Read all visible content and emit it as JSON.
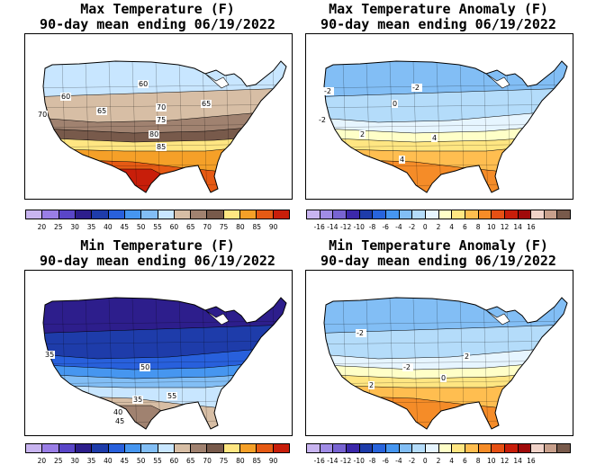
{
  "panels": [
    {
      "id": "max-temp",
      "title_line1": "Max Temperature (F)",
      "title_line2": "90-day mean ending 06/19/2022",
      "contour_labels": [
        "60",
        "60",
        "70",
        "65",
        "70",
        "75",
        "65",
        "80",
        "85"
      ],
      "scale": {
        "ticks": [
          "20",
          "25",
          "30",
          "35",
          "40",
          "45",
          "50",
          "55",
          "60",
          "65",
          "70",
          "75",
          "80",
          "85",
          "90"
        ],
        "colors": [
          "#c8b4f0",
          "#9a7ee6",
          "#5a46c8",
          "#2d1e8c",
          "#1e3caa",
          "#2860dc",
          "#4696f0",
          "#82bef5",
          "#c8e6ff",
          "#d7bea5",
          "#a08270",
          "#785a4b",
          "#ffe682",
          "#f5a028",
          "#e65a14",
          "#c81e0a"
        ]
      }
    },
    {
      "id": "max-anom",
      "title_line1": "Max Temperature Anomaly (F)",
      "title_line2": "90-day mean ending 06/19/2022",
      "contour_labels": [
        "-2",
        "-2",
        "-2",
        "2",
        "4",
        "4",
        "0"
      ],
      "scale": {
        "ticks": [
          "-16",
          "-14",
          "-12",
          "-10",
          "-8",
          "-6",
          "-4",
          "-2",
          "0",
          "2",
          "4",
          "6",
          "8",
          "10",
          "12",
          "14",
          "16"
        ],
        "colors": [
          "#c8b4f0",
          "#a08ce6",
          "#7864d2",
          "#3c28aa",
          "#1e3caa",
          "#2864dc",
          "#4696f0",
          "#82bef5",
          "#b4dcfa",
          "#e6f5ff",
          "#ffffc8",
          "#ffe682",
          "#ffbe50",
          "#f58c28",
          "#e65014",
          "#c81e0a",
          "#a00a0a",
          "#f0d2c8",
          "#c8a08c",
          "#785a4b"
        ]
      }
    },
    {
      "id": "min-temp",
      "title_line1": "Min Temperature (F)",
      "title_line2": "90-day mean ending 06/19/2022",
      "contour_labels": [
        "35",
        "50",
        "35",
        "40",
        "45",
        "55"
      ],
      "scale": {
        "ticks": [
          "20",
          "25",
          "30",
          "35",
          "40",
          "45",
          "50",
          "55",
          "60",
          "65",
          "70",
          "75",
          "80",
          "85",
          "90"
        ],
        "colors": [
          "#c8b4f0",
          "#9a7ee6",
          "#5a46c8",
          "#2d1e8c",
          "#1e3caa",
          "#2860dc",
          "#4696f0",
          "#82bef5",
          "#c8e6ff",
          "#d7bea5",
          "#a08270",
          "#785a4b",
          "#ffe682",
          "#f5a028",
          "#e65a14",
          "#c81e0a"
        ]
      }
    },
    {
      "id": "min-anom",
      "title_line1": "Min Temperature Anomaly (F)",
      "title_line2": "90-day mean ending 06/19/2022",
      "contour_labels": [
        "-2",
        "2",
        "2",
        "-2",
        "0"
      ],
      "scale": {
        "ticks": [
          "-16",
          "-14",
          "-12",
          "-10",
          "-8",
          "-6",
          "-4",
          "-2",
          "0",
          "2",
          "4",
          "6",
          "8",
          "10",
          "12",
          "14",
          "16"
        ],
        "colors": [
          "#c8b4f0",
          "#a08ce6",
          "#7864d2",
          "#3c28aa",
          "#1e3caa",
          "#2864dc",
          "#4696f0",
          "#82bef5",
          "#b4dcfa",
          "#e6f5ff",
          "#ffffc8",
          "#ffe682",
          "#ffbe50",
          "#f58c28",
          "#e65014",
          "#c81e0a",
          "#a00a0a",
          "#f0d2c8",
          "#c8a08c",
          "#785a4b"
        ]
      }
    }
  ],
  "fills": {
    "max-temp": [
      "#c8e6ff",
      "#d7bea5",
      "#a08270",
      "#785a4b",
      "#ffe682",
      "#f5a028",
      "#e65a14",
      "#c81e0a"
    ],
    "max-anom": [
      "#82bef5",
      "#b4dcfa",
      "#e6f5ff",
      "#ffffc8",
      "#ffe682",
      "#ffbe50",
      "#f58c28"
    ],
    "min-temp": [
      "#2d1e8c",
      "#1e3caa",
      "#2860dc",
      "#4696f0",
      "#82bef5",
      "#c8e6ff",
      "#d7bea5",
      "#a08270"
    ],
    "min-anom": [
      "#82bef5",
      "#b4dcfa",
      "#e6f5ff",
      "#ffffc8",
      "#ffe682",
      "#ffbe50",
      "#f58c28"
    ]
  }
}
